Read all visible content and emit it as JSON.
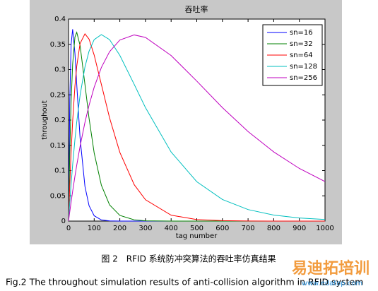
{
  "chart_data": {
    "type": "line",
    "title": "吞吐率",
    "xlabel": "tag number",
    "ylabel": "throughout",
    "x": [
      0,
      5,
      10,
      16,
      25,
      32,
      45,
      64,
      80,
      100,
      128,
      160,
      200,
      256,
      300,
      400,
      500,
      600,
      700,
      800,
      900,
      1000
    ],
    "series": [
      {
        "name": "sn=16",
        "color": "#0000ff",
        "values": [
          0,
          0.2414,
          0.3496,
          0.3798,
          0.332,
          0.2705,
          0.1644,
          0.0686,
          0.0305,
          0.0105,
          0.0022,
          0.0003,
          0,
          0,
          0,
          0,
          0,
          0,
          0,
          0,
          0,
          0
        ]
      },
      {
        "name": "sn=32",
        "color": "#008000",
        "values": [
          0,
          0.1376,
          0.2348,
          0.3106,
          0.3646,
          0.3737,
          0.3478,
          0.2706,
          0.2035,
          0.1348,
          0.071,
          0.0321,
          0.0113,
          0.0024,
          0.0005,
          0,
          0,
          0,
          0,
          0,
          0,
          0
        ]
      },
      {
        "name": "sn=64",
        "color": "#ff0000",
        "values": [
          0,
          0.0733,
          0.1356,
          0.1974,
          0.2677,
          0.3068,
          0.3516,
          0.3707,
          0.3603,
          0.3286,
          0.2707,
          0.2044,
          0.1361,
          0.0721,
          0.0423,
          0.0117,
          0.003,
          0.0008,
          0.0001,
          0,
          0,
          0
        ]
      },
      {
        "name": "sn=128",
        "color": "#00bfbf",
        "values": [
          0,
          0.0379,
          0.0728,
          0.1111,
          0.1618,
          0.1961,
          0.249,
          0.3051,
          0.3364,
          0.3594,
          0.3693,
          0.3593,
          0.3281,
          0.2707,
          0.2246,
          0.1368,
          0.078,
          0.0427,
          0.0228,
          0.0119,
          0.0061,
          0.0031
        ]
      },
      {
        "name": "sn=256",
        "color": "#bf00bf",
        "values": [
          0,
          0.0192,
          0.0377,
          0.0589,
          0.0889,
          0.1107,
          0.148,
          0.1954,
          0.2293,
          0.2651,
          0.3041,
          0.3354,
          0.3585,
          0.3686,
          0.3637,
          0.3278,
          0.2772,
          0.2247,
          0.1773,
          0.137,
          0.1042,
          0.0783
        ]
      }
    ],
    "xlim": [
      0,
      1000
    ],
    "ylim": [
      0,
      0.4
    ],
    "xticks": [
      0,
      100,
      200,
      300,
      400,
      500,
      600,
      700,
      800,
      900,
      1000
    ],
    "yticks": [
      0,
      0.05,
      0.1,
      0.15,
      0.2,
      0.25,
      0.3,
      0.35,
      0.4
    ],
    "grid": false,
    "legend": "upper right"
  },
  "caption_cn": "图 2　RFID 系统防冲突算法的吞吐率仿真结果",
  "caption_en": "Fig.2 The throughout simulation results of anti-collision algorithm in RFID system",
  "watermark": {
    "text": "易迪拓培训",
    "url": "www.edatop.com"
  }
}
